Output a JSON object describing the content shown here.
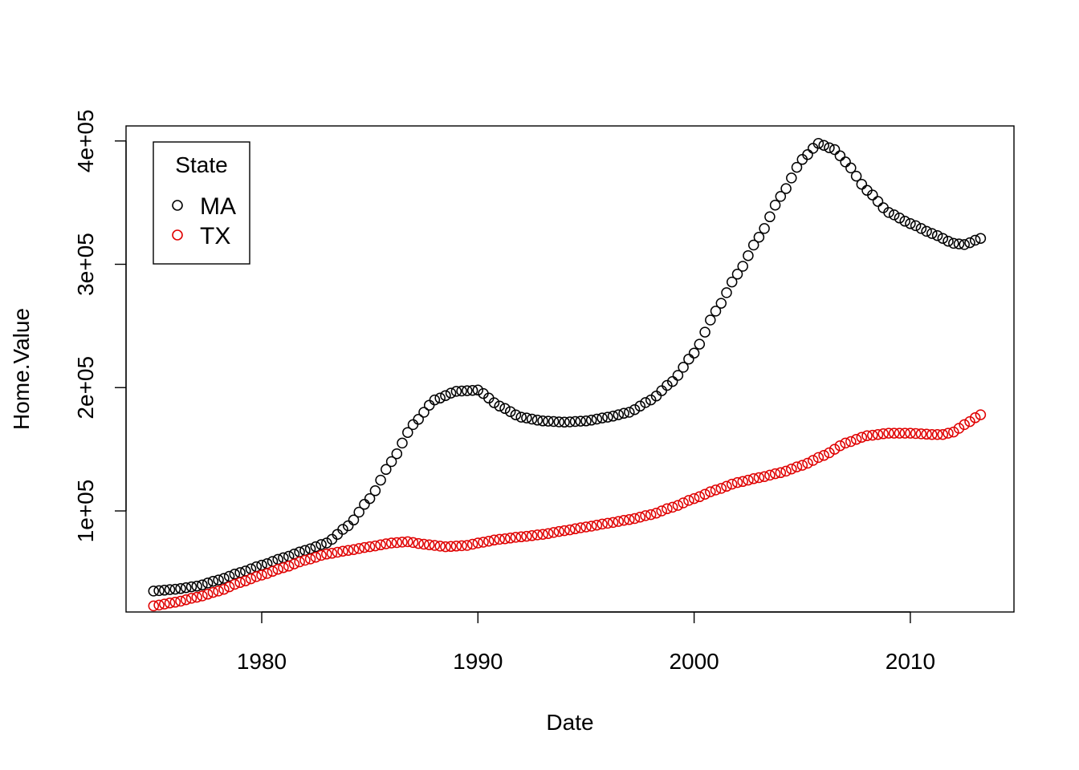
{
  "chart_data": {
    "type": "scatter",
    "xlabel": "Date",
    "ylabel": "Home.Value",
    "xlim": [
      1975.0,
      2013.25
    ],
    "ylim": [
      20000,
      400000
    ],
    "x_ticks": [
      1980,
      1990,
      2000,
      2010
    ],
    "x_tick_labels": [
      "1980",
      "1990",
      "2000",
      "2010"
    ],
    "y_ticks": [
      100000,
      200000,
      300000,
      400000
    ],
    "y_tick_labels": [
      "1e+05",
      "2e+05",
      "3e+05",
      "4e+05"
    ],
    "grid": false,
    "legend": {
      "title": "State",
      "position": "top-left",
      "entries": [
        {
          "label": "MA",
          "color": "#000000"
        },
        {
          "label": "TX",
          "color": "#e00000"
        }
      ]
    },
    "marker": "open-circle",
    "series": [
      {
        "name": "MA",
        "color": "#000000",
        "knots": [
          [
            1975.0,
            35000
          ],
          [
            1976.0,
            36500
          ],
          [
            1977.0,
            39000
          ],
          [
            1978.0,
            44000
          ],
          [
            1979.0,
            50000
          ],
          [
            1980.0,
            56000
          ],
          [
            1981.0,
            62000
          ],
          [
            1982.0,
            68000
          ],
          [
            1983.0,
            74000
          ],
          [
            1984.0,
            88000
          ],
          [
            1985.0,
            110000
          ],
          [
            1986.0,
            140000
          ],
          [
            1987.0,
            170000
          ],
          [
            1988.0,
            190000
          ],
          [
            1989.0,
            197000
          ],
          [
            1990.0,
            198000
          ],
          [
            1991.0,
            185000
          ],
          [
            1992.0,
            176000
          ],
          [
            1993.0,
            173000
          ],
          [
            1994.0,
            172000
          ],
          [
            1995.0,
            173000
          ],
          [
            1996.0,
            176000
          ],
          [
            1997.0,
            180000
          ],
          [
            1998.0,
            190000
          ],
          [
            1999.0,
            205000
          ],
          [
            2000.0,
            228000
          ],
          [
            2001.0,
            262000
          ],
          [
            2002.0,
            292000
          ],
          [
            2003.0,
            322000
          ],
          [
            2004.0,
            355000
          ],
          [
            2005.0,
            385000
          ],
          [
            2005.75,
            398000
          ],
          [
            2006.5,
            393000
          ],
          [
            2007.0,
            383000
          ],
          [
            2008.0,
            360000
          ],
          [
            2009.0,
            342000
          ],
          [
            2010.0,
            333000
          ],
          [
            2011.0,
            325000
          ],
          [
            2012.0,
            317000
          ],
          [
            2012.5,
            316000
          ],
          [
            2013.25,
            321000
          ]
        ]
      },
      {
        "name": "TX",
        "color": "#e00000",
        "knots": [
          [
            1975.0,
            23000
          ],
          [
            1976.0,
            26000
          ],
          [
            1977.0,
            30000
          ],
          [
            1978.0,
            35000
          ],
          [
            1979.0,
            42000
          ],
          [
            1980.0,
            48000
          ],
          [
            1981.0,
            54000
          ],
          [
            1982.0,
            60000
          ],
          [
            1983.0,
            65000
          ],
          [
            1984.0,
            68000
          ],
          [
            1985.0,
            71000
          ],
          [
            1986.0,
            74000
          ],
          [
            1986.75,
            75000
          ],
          [
            1987.5,
            73000
          ],
          [
            1988.5,
            71000
          ],
          [
            1989.5,
            72000
          ],
          [
            1990.0,
            74000
          ],
          [
            1991.0,
            77000
          ],
          [
            1992.0,
            79000
          ],
          [
            1993.0,
            81000
          ],
          [
            1994.0,
            84000
          ],
          [
            1995.0,
            87000
          ],
          [
            1996.0,
            90000
          ],
          [
            1997.0,
            93000
          ],
          [
            1998.0,
            97000
          ],
          [
            1999.0,
            103000
          ],
          [
            2000.0,
            110000
          ],
          [
            2001.0,
            117000
          ],
          [
            2002.0,
            123000
          ],
          [
            2003.0,
            127000
          ],
          [
            2004.0,
            131000
          ],
          [
            2005.0,
            137000
          ],
          [
            2006.0,
            145000
          ],
          [
            2007.0,
            155000
          ],
          [
            2008.0,
            161000
          ],
          [
            2009.0,
            163000
          ],
          [
            2010.0,
            163000
          ],
          [
            2011.0,
            162000
          ],
          [
            2011.5,
            162000
          ],
          [
            2012.0,
            164000
          ],
          [
            2012.5,
            170000
          ],
          [
            2013.25,
            178000
          ]
        ]
      }
    ]
  }
}
